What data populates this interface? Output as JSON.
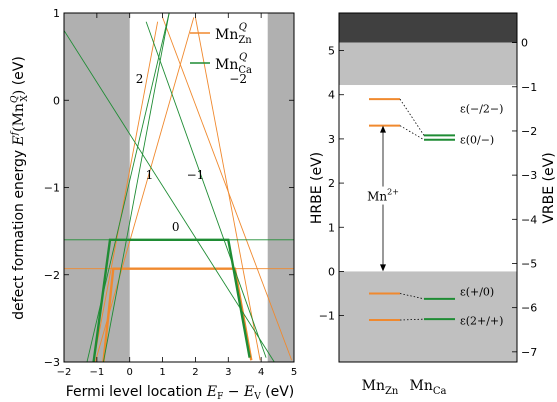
{
  "chart_data": [
    {
      "type": "line",
      "xlabel": "Fermi level location E_F − E_V (eV)",
      "ylabel": "defect formation energy E^f(Mn_X^Q) (eV)",
      "xlim": [
        -2,
        5
      ],
      "ylim": [
        -3,
        1
      ],
      "xticks": [
        "−2",
        "−1",
        "0",
        "1",
        "2",
        "3",
        "4",
        "5"
      ],
      "yticks": [
        "−3",
        "−2",
        "−1",
        "0",
        "1"
      ],
      "shaded_x_ranges": [
        [
          -2,
          0
        ],
        [
          4.2,
          5
        ]
      ],
      "legend": {
        "placement": "top-right",
        "entries": [
          "Mn_Zn^Q",
          "Mn_Ca^Q"
        ]
      },
      "charge_labels": [
        {
          "text": "2",
          "x": 0.3,
          "y": 0.2
        },
        {
          "text": "1",
          "x": 0.6,
          "y": -0.9
        },
        {
          "text": "−1",
          "x": 2.0,
          "y": -0.9
        },
        {
          "text": "−2",
          "x": 3.3,
          "y": 0.2
        },
        {
          "text": "0",
          "x": 1.4,
          "y": -1.5
        }
      ],
      "series": [
        {
          "name": "Mn_Zn^Q",
          "color": "#f0892e",
          "q2": [
            [
              -1.1,
              -3
            ],
            [
              0.85,
              0.9
            ]
          ],
          "q1": [
            [
              -1.05,
              -3
            ],
            [
              1.95,
              0.95
            ]
          ],
          "q0": [
            [
              -2,
              -1.93
            ],
            [
              5,
              -1.93
            ]
          ],
          "qm1": [
            [
              1.0,
              0.95
            ],
            [
              4.93,
              -2.98
            ]
          ],
          "qm2": [
            [
              2.0,
              0.95
            ],
            [
              3.97,
              -2.98
            ]
          ],
          "ground_state": [
            [
              -0.8,
              -3
            ],
            [
              -0.5,
              -1.93
            ],
            [
              3.2,
              -1.93
            ],
            [
              3.7,
              -2.98
            ]
          ]
        },
        {
          "name": "Mn_Ca^Q",
          "color": "#1f8c34",
          "q2": [
            [
              -0.8,
              -3
            ],
            [
              1.2,
              1.0
            ]
          ],
          "q1": [
            [
              -1.3,
              -3
            ],
            [
              1.2,
              1.0
            ]
          ],
          "q0": [
            [
              -2,
              -1.6
            ],
            [
              5,
              -1.6
            ]
          ],
          "qm1": [
            [
              -2,
              0.8
            ],
            [
              4.4,
              -3
            ]
          ],
          "qm2": [
            [
              0.5,
              0.9
            ],
            [
              4.15,
              -2.95
            ]
          ],
          "ground_state": [
            [
              -1.1,
              -3
            ],
            [
              -0.6,
              -1.6
            ],
            [
              3.0,
              -1.6
            ],
            [
              3.65,
              -2.95
            ]
          ]
        }
      ]
    },
    {
      "type": "level_diagram",
      "ylabel_left": "HRBE (eV)",
      "ylabel_right": "VRBE (eV)",
      "left_ylim": [
        -2.05,
        5.85
      ],
      "left_yticks": [
        "−1",
        "0",
        "1",
        "2",
        "3",
        "4",
        "5"
      ],
      "right_yticks": [
        "0",
        "−1",
        "−2",
        "−3",
        "−4",
        "−5",
        "−6",
        "−7"
      ],
      "bands": [
        {
          "name": "conduction",
          "from": 5.18,
          "to": 5.85,
          "color": "#404040"
        },
        {
          "name": "conduction-lower",
          "from": 4.22,
          "to": 5.18,
          "color": "#c0c0c0"
        },
        {
          "name": "valence",
          "from": -2.05,
          "to": 0.0,
          "color": "#c0c0c0"
        }
      ],
      "categories": [
        "Mn_Zn",
        "Mn_Ca"
      ],
      "levels": [
        {
          "label": "ε(−/2−)",
          "Mn_Zn": 3.9,
          "Mn_Ca": 3.08
        },
        {
          "label": "ε(0/−)",
          "Mn_Zn": 3.3,
          "Mn_Ca": 2.98
        },
        {
          "label": "ε(+/0)",
          "Mn_Zn": -0.5,
          "Mn_Ca": -0.62
        },
        {
          "label": "ε(2+/+)",
          "Mn_Zn": -1.1,
          "Mn_Ca": -1.08
        }
      ],
      "annotation": {
        "text": "Mn2+",
        "from": 0.0,
        "to": 3.3
      },
      "colors": {
        "Mn_Zn": "#f0892e",
        "Mn_Ca": "#1f8c34"
      }
    }
  ]
}
